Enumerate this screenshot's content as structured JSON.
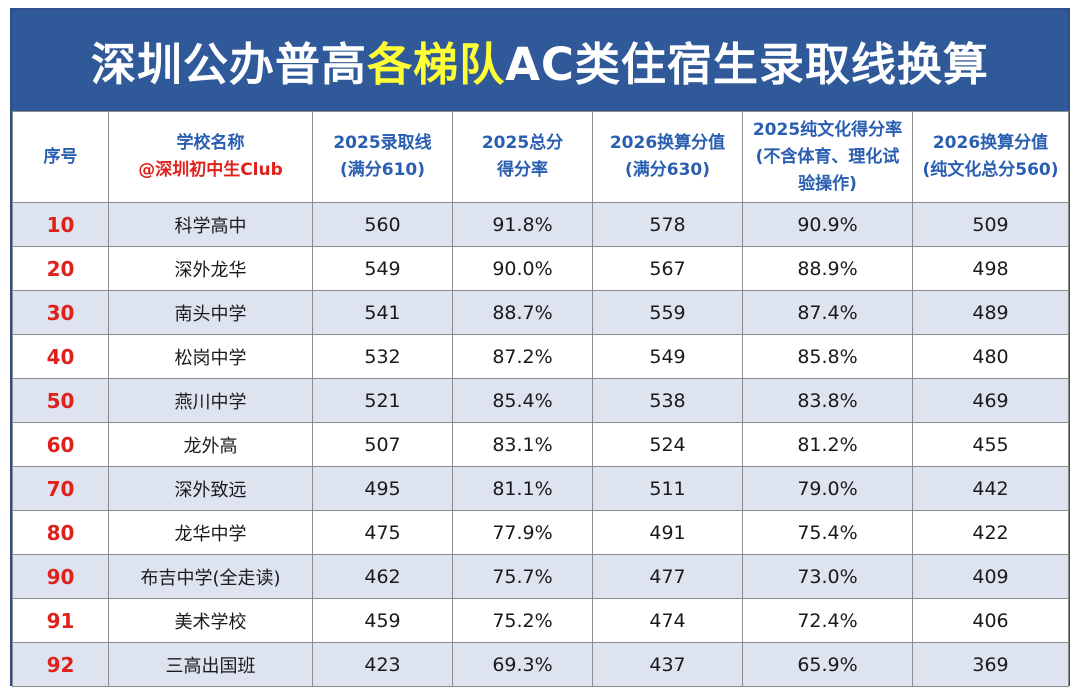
{
  "title": {
    "part1": "深圳公办普高",
    "highlight": "各梯队",
    "part2": "AC类住宿生录取线换算"
  },
  "headers": {
    "rank": "序号",
    "school_line1": "学校名称",
    "school_line2": "@深圳初中生Club",
    "score2025_line1": "2025录取线",
    "score2025_line2": "(满分610)",
    "rate2025_line1": "2025总分",
    "rate2025_line2": "得分率",
    "conv2026_line1": "2026换算分值",
    "conv2026_line2": "(满分630)",
    "culture_rate_line1": "2025纯文化得分率",
    "culture_rate_line2": "(不含体育、理化试",
    "culture_rate_line3": "验操作)",
    "culture_conv_line1": "2026换算分值",
    "culture_conv_line2": "(纯文化总分560)"
  },
  "rows": [
    {
      "rank": "10",
      "school": "科学高中",
      "score2025": "560",
      "rate2025": "91.8%",
      "conv2026": "578",
      "culture_rate": "90.9%",
      "culture_conv": "509"
    },
    {
      "rank": "20",
      "school": "深外龙华",
      "score2025": "549",
      "rate2025": "90.0%",
      "conv2026": "567",
      "culture_rate": "88.9%",
      "culture_conv": "498"
    },
    {
      "rank": "30",
      "school": "南头中学",
      "score2025": "541",
      "rate2025": "88.7%",
      "conv2026": "559",
      "culture_rate": "87.4%",
      "culture_conv": "489"
    },
    {
      "rank": "40",
      "school": "松岗中学",
      "score2025": "532",
      "rate2025": "87.2%",
      "conv2026": "549",
      "culture_rate": "85.8%",
      "culture_conv": "480"
    },
    {
      "rank": "50",
      "school": "燕川中学",
      "score2025": "521",
      "rate2025": "85.4%",
      "conv2026": "538",
      "culture_rate": "83.8%",
      "culture_conv": "469"
    },
    {
      "rank": "60",
      "school": "龙外高",
      "score2025": "507",
      "rate2025": "83.1%",
      "conv2026": "524",
      "culture_rate": "81.2%",
      "culture_conv": "455"
    },
    {
      "rank": "70",
      "school": "深外致远",
      "score2025": "495",
      "rate2025": "81.1%",
      "conv2026": "511",
      "culture_rate": "79.0%",
      "culture_conv": "442"
    },
    {
      "rank": "80",
      "school": "龙华中学",
      "score2025": "475",
      "rate2025": "77.9%",
      "conv2026": "491",
      "culture_rate": "75.4%",
      "culture_conv": "422"
    },
    {
      "rank": "90",
      "school": "布吉中学(全走读)",
      "score2025": "462",
      "rate2025": "75.7%",
      "conv2026": "477",
      "culture_rate": "73.0%",
      "culture_conv": "409"
    },
    {
      "rank": "91",
      "school": "美术学校",
      "score2025": "459",
      "rate2025": "75.2%",
      "conv2026": "474",
      "culture_rate": "72.4%",
      "culture_conv": "406"
    },
    {
      "rank": "92",
      "school": "三高出国班",
      "score2025": "423",
      "rate2025": "69.3%",
      "conv2026": "437",
      "culture_rate": "65.9%",
      "culture_conv": "369"
    }
  ],
  "colors": {
    "title_bg": "#30599a",
    "title_highlight": "#ffff33",
    "header_text": "#2a5eb0",
    "rank_text": "#e0201b",
    "stripe": "#dde3ef"
  }
}
